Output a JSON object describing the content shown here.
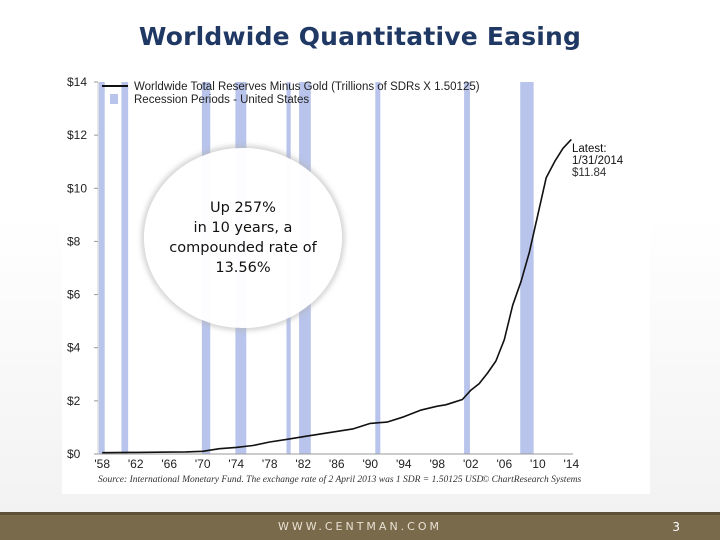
{
  "slide": {
    "title": "Worldwide Quantitative Easing",
    "website": "WWW.CENTMAN.COM",
    "page_number": "3"
  },
  "callout": {
    "lines": [
      "Up 257%",
      "in 10 years, a",
      "compounded rate of",
      "13.56%"
    ]
  },
  "colors": {
    "title": "#1f3864",
    "recession": "#b8c4eb",
    "line": "#111111",
    "footer": "#7a6a4c"
  },
  "chart_data": {
    "type": "line",
    "legend": [
      "Worldwide Total Reserves Minus Gold (Trillions of SDRs X 1.50125)",
      "Recession Periods - United States"
    ],
    "legend_position": "top-left",
    "x_tick_labels": [
      "'58",
      "'62",
      "'66",
      "'70",
      "'74",
      "'78",
      "'82",
      "'86",
      "'90",
      "'94",
      "'98",
      "'02",
      "'06",
      "'10",
      "'14"
    ],
    "y_tick_labels": [
      "$0",
      "$2",
      "$4",
      "$6",
      "$8",
      "$10",
      "$12",
      "$14"
    ],
    "xlim": [
      1957.5,
      2014.2
    ],
    "ylim": [
      0,
      14
    ],
    "grid": false,
    "latest_label": [
      "Latest:",
      "1/31/2014",
      "$11.84"
    ],
    "source": "Source: International Monetary Fund. The exchange rate of 2 April 2013 was 1 SDR = 1.50125 USD",
    "watermark": "© ChartResearch Systems",
    "recessions": [
      [
        1957.6,
        1958.3
      ],
      [
        1960.3,
        1961.1
      ],
      [
        1969.9,
        1970.9
      ],
      [
        1973.9,
        1975.2
      ],
      [
        1980.0,
        1980.5
      ],
      [
        1981.5,
        1982.9
      ],
      [
        1990.6,
        1991.2
      ],
      [
        2001.2,
        2001.9
      ],
      [
        2007.9,
        2009.5
      ]
    ],
    "series": [
      {
        "name": "Worldwide Total Reserves Minus Gold (Trillions of SDRs X 1.50125)",
        "x": [
          1958,
          1962,
          1966,
          1968,
          1970,
          1972,
          1974,
          1976,
          1978,
          1980,
          1982,
          1984,
          1986,
          1988,
          1990,
          1992,
          1994,
          1996,
          1998,
          1999,
          2000,
          2001,
          2002,
          2003,
          2004,
          2005,
          2006,
          2007,
          2008,
          2009,
          2010,
          2011,
          2012,
          2013,
          2014
        ],
        "values": [
          0.05,
          0.06,
          0.07,
          0.08,
          0.1,
          0.2,
          0.25,
          0.32,
          0.45,
          0.55,
          0.65,
          0.75,
          0.85,
          0.95,
          1.15,
          1.2,
          1.4,
          1.65,
          1.8,
          1.85,
          1.95,
          2.05,
          2.4,
          2.65,
          3.05,
          3.5,
          4.3,
          5.6,
          6.5,
          7.6,
          9.0,
          10.4,
          11.0,
          11.5,
          11.84
        ]
      }
    ]
  }
}
